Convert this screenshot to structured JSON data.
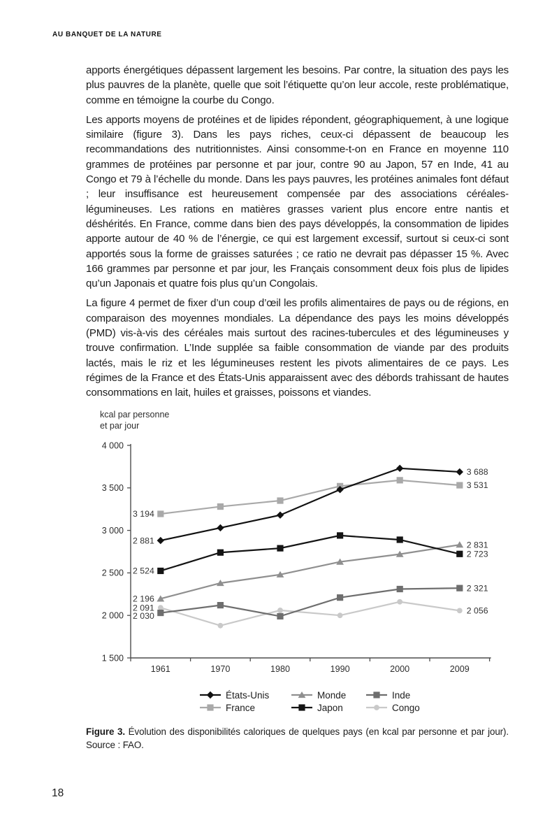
{
  "page": {
    "running_header": "AU BANQUET DE LA NATURE",
    "page_number": "18"
  },
  "paragraphs": [
    "apports énergétiques dépassent largement les besoins. Par contre, la situation des pays les plus pauvres de la planète, quelle que soit l’étiquette qu’on leur accole, reste problématique, comme en témoigne la courbe du Congo.",
    "Les apports moyens de protéines et de lipides répondent, géographiquement, à une logique similaire (figure 3). Dans les pays riches, ceux-ci dépassent de beaucoup les recommandations des nutritionnistes. Ainsi consomme-t-on en France en moyenne 110 grammes de protéines par personne et par jour, contre 90 au Japon, 57 en Inde, 41 au Congo et 79 à l’échelle du monde. Dans les pays pauvres, les protéines animales font défaut ; leur insuffisance est heureusement compensée par des associations céréales-légumineuses. Les rations en matières grasses varient plus encore entre nantis et déshérités. En France, comme dans bien des pays développés, la consommation de lipides apporte autour de 40 % de l’énergie, ce qui est largement excessif, surtout si ceux-ci sont apportés sous la forme de graisses saturées ; ce ratio ne devrait pas dépasser 15 %. Avec 166 grammes par personne et par jour, les Français consomment deux fois plus de lipides qu’un Japonais et quatre fois plus qu’un Congolais.",
    "La figure 4 permet de fixer d’un coup d’œil les profils alimentaires de pays ou de régions, en comparaison des moyennes mondiales. La dépendance des pays les moins développés (PMD) vis-à-vis des céréales mais surtout des racines-tubercules et des légumineuses y trouve confirmation. L’Inde supplée sa faible consommation de viande par des produits lactés, mais le riz et les légumineuses restent les pivots alimentaires de ce pays. Les régimes de la France et des États-Unis apparaissent avec des débords trahissant de hautes consommations en lait, huiles et graisses, poissons et viandes."
  ],
  "chart_data": {
    "type": "line",
    "axis_title_lines": [
      "kcal par personne",
      "et par jour"
    ],
    "x_labels": [
      "1961",
      "1970",
      "1980",
      "1990",
      "2000",
      "2009"
    ],
    "y_ticks": [
      {
        "label": "4 000",
        "value": 4000
      },
      {
        "label": "3 500",
        "value": 3500
      },
      {
        "label": "3 000",
        "value": 3000
      },
      {
        "label": "2 500",
        "value": 2500
      },
      {
        "label": "2 000",
        "value": 2000
      },
      {
        "label": "1 500",
        "value": 1500
      }
    ],
    "ylim": [
      1500,
      4000
    ],
    "grid": false,
    "legend_position": "bottom",
    "series": [
      {
        "name": "États-Unis",
        "marker": "diamond",
        "color": "#111111",
        "values": [
          2881,
          3030,
          3180,
          3480,
          3730,
          3688
        ],
        "label_start": "2 881",
        "label_end": "3 688"
      },
      {
        "name": "Monde",
        "marker": "triangle",
        "color": "#8f8f8f",
        "values": [
          2196,
          2380,
          2480,
          2630,
          2720,
          2831
        ],
        "label_start": "2 196",
        "label_end": "2 831"
      },
      {
        "name": "Inde",
        "marker": "square",
        "color": "#6e6e6e",
        "values": [
          2030,
          2120,
          1990,
          2210,
          2310,
          2321
        ],
        "label_start": "2 030",
        "label_end": "2 321"
      },
      {
        "name": "France",
        "marker": "square",
        "color": "#a9a9a9",
        "values": [
          3194,
          3280,
          3350,
          3520,
          3590,
          3531
        ],
        "label_start": "3 194",
        "label_end": "3 531"
      },
      {
        "name": "Japon",
        "marker": "square",
        "color": "#141414",
        "values": [
          2524,
          2740,
          2790,
          2940,
          2890,
          2723
        ],
        "label_start": "2 524",
        "label_end": "2 723"
      },
      {
        "name": "Congo",
        "marker": "circle",
        "color": "#c9c9c9",
        "values": [
          2091,
          1880,
          2060,
          2000,
          2160,
          2056
        ],
        "label_start": "2 091",
        "label_end": "2 056"
      }
    ],
    "legend_order": [
      "États-Unis",
      "Monde",
      "Inde",
      "France",
      "Japon",
      "Congo"
    ]
  },
  "caption": {
    "bold": "Figure 3.",
    "rest": "Évolution des disponibilités caloriques de quelques pays (en kcal par personne et par jour).",
    "line2": "Source : FAO."
  },
  "colors": {
    "text": "#1b1b1b",
    "axis": "#4d4d4d",
    "data_label": "#333333"
  }
}
